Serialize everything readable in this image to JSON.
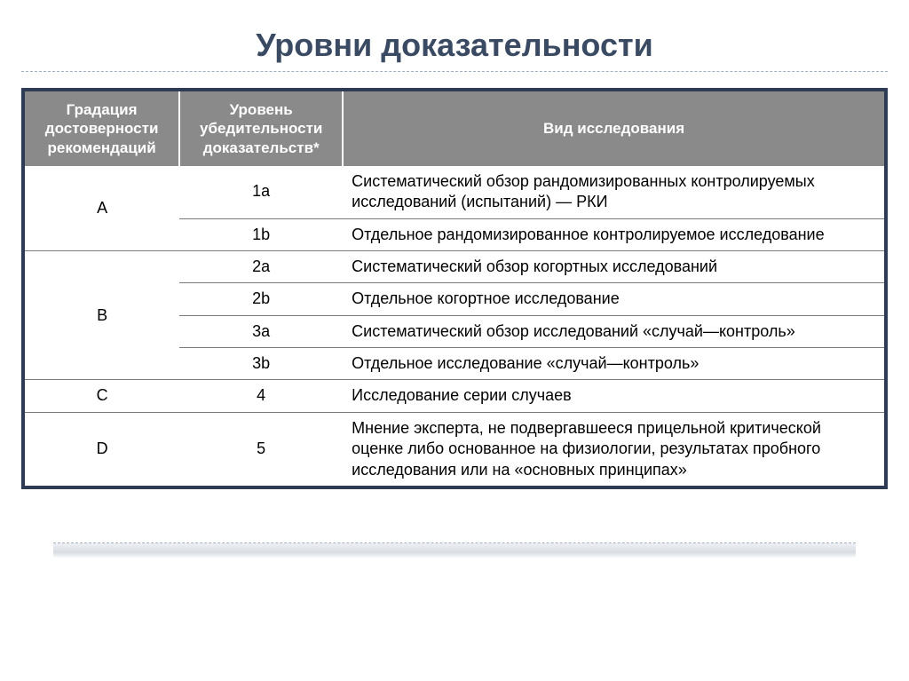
{
  "title": "Уровни доказательности",
  "table": {
    "headers": {
      "col1": "Градация достоверности рекомендаций",
      "col2": "Уровень убедительности доказательств*",
      "col3": "Вид исследования"
    },
    "rows": [
      {
        "grade": "A",
        "gradeRowspan": 2,
        "level": "1a",
        "desc": "Систематический обзор рандомизированных контролируемых исследований (испытаний) — РКИ"
      },
      {
        "level": "1b",
        "desc": "Отдельное рандомизированное контролируемое исследование"
      },
      {
        "grade": "B",
        "gradeRowspan": 4,
        "level": "2a",
        "desc": "Систематический обзор когортных исследований"
      },
      {
        "level": "2b",
        "desc": "Отдельное когортное исследование"
      },
      {
        "level": "3a",
        "desc": "Систематический обзор исследований «случай—контроль»"
      },
      {
        "level": "3b",
        "desc": "Отдельное исследование «случай—контроль»"
      },
      {
        "grade": "C",
        "gradeRowspan": 1,
        "level": "4",
        "desc": "Исследование серии случаев"
      },
      {
        "grade": "D",
        "gradeRowspan": 1,
        "level": "5",
        "desc": "Мнение эксперта, не подвергавшееся прицельной критической оценке либо основанное на физиологии, результатах пробного исследования или на «основных принципах»"
      }
    ]
  },
  "styling": {
    "title_color": "#3a4a63",
    "title_fontsize": 36,
    "header_bg": "#8a8a8a",
    "header_text_color": "#ffffff",
    "header_fontsize": 17,
    "cell_fontsize": 18,
    "cell_text_color": "#000000",
    "row_border_color": "#7a7a7a",
    "frame_border_color": "#2d3b55",
    "frame_border_width": 4,
    "dashed_color": "#a0aec0",
    "col_widths_pct": [
      18,
      19,
      63
    ],
    "background_color": "#ffffff"
  }
}
